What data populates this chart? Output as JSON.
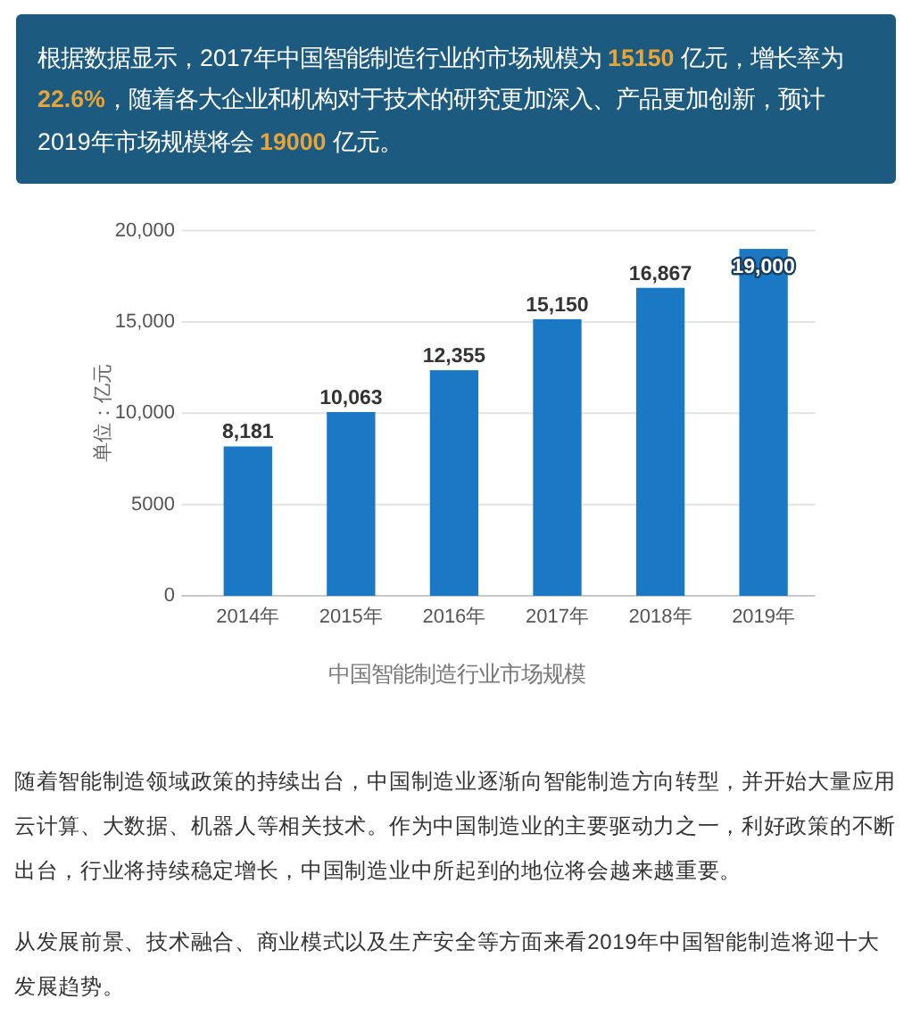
{
  "chart_data": {
    "type": "bar",
    "title": "中国智能制造行业市场规模",
    "ylabel": "单位：亿元",
    "categories": [
      "2014年",
      "2015年",
      "2016年",
      "2017年",
      "2018年",
      "2019年"
    ],
    "values": [
      8181,
      10063,
      12355,
      15150,
      16867,
      19000
    ],
    "value_labels": [
      "8,181",
      "10,063",
      "12,355",
      "15,150",
      "16,867",
      "19,000"
    ],
    "color": "#1a78c5",
    "ylim": [
      0,
      20000
    ],
    "yticks": [
      0,
      5000,
      {
        "value": 10000,
        "label": "10,000"
      },
      {
        "value": 15000,
        "label": "15,000"
      },
      {
        "value": 20000,
        "label": "20,000"
      }
    ],
    "grid": "y",
    "annotations": [
      "根据数据显示，2017年中国智能制造行业的市场规模为 15150 亿元，增长率为 22.6%，随着各大企业和机构对于技术的研究更加深入、产品更加创新，预计2019年市场规模将会 19000 亿元。",
      "随着智能制造领域政策的持续出台，中国制造业逐渐向智能制造方向转型，并开始大量应用云计算、大数据、机器人等相关技术。作为中国制造业的主要驱动力之一，利好政策的不断出台，行业将持续稳定增长，中国制造业中所起到的地位将会越来越重要。",
      "从发展前景、技术融合、商业模式以及生产安全等方面来看2019年中国智能制造将迎十大发展趋势。"
    ]
  }
}
